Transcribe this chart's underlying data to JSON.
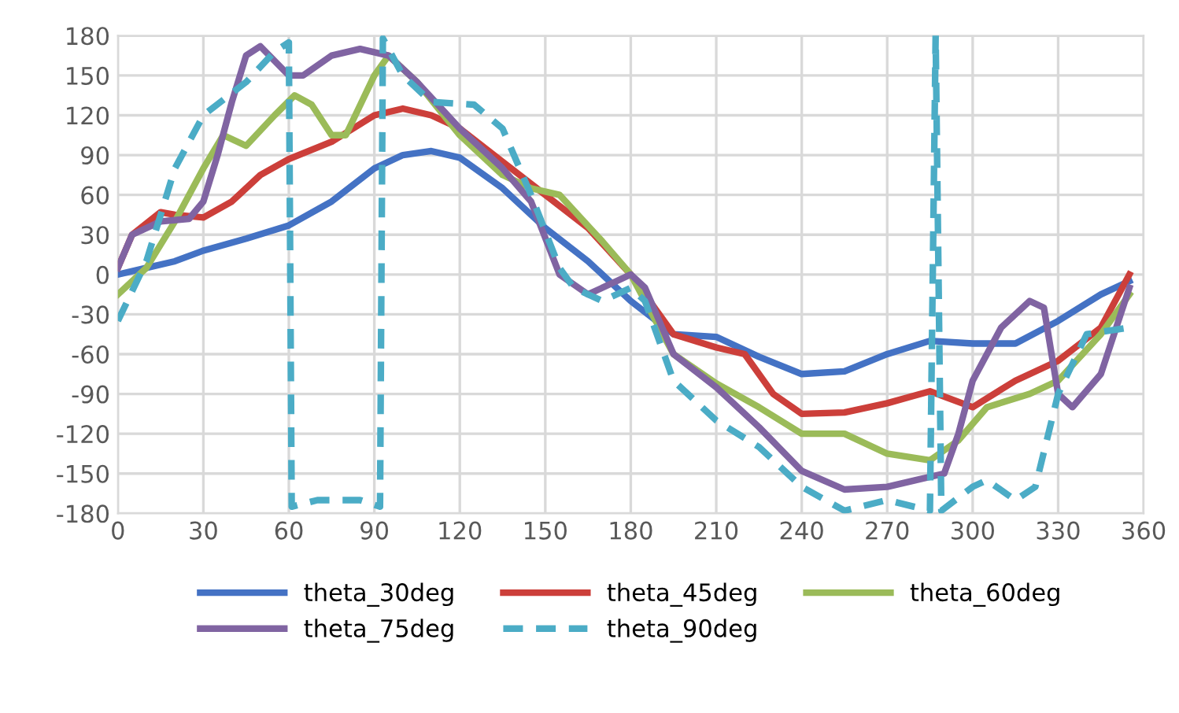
{
  "chart_data": {
    "type": "line",
    "xlim": [
      0,
      360
    ],
    "xticks": [
      0,
      30,
      60,
      90,
      120,
      150,
      180,
      210,
      240,
      270,
      300,
      330,
      360
    ],
    "ylim": [
      -180,
      180
    ],
    "yticks": [
      -180,
      -150,
      -120,
      -90,
      -60,
      -30,
      0,
      30,
      60,
      90,
      120,
      150,
      180
    ],
    "grid": true,
    "legend": "bottom",
    "marker": "none",
    "series": [
      {
        "name": "theta_30deg",
        "color": "#4472c4",
        "line_style": "solid",
        "x": [
          0,
          10,
          20,
          30,
          45,
          60,
          75,
          90,
          100,
          110,
          120,
          135,
          150,
          165,
          180,
          195,
          210,
          225,
          240,
          255,
          270,
          285,
          300,
          315,
          330,
          345,
          355
        ],
        "values": [
          0,
          5,
          10,
          18,
          27,
          37,
          55,
          80,
          90,
          93,
          88,
          65,
          35,
          10,
          -20,
          -45,
          -47,
          -62,
          -75,
          -73,
          -60,
          -50,
          -52,
          -52,
          -35,
          -15,
          -5
        ]
      },
      {
        "name": "theta_45deg",
        "color": "#cc3f3a",
        "line_style": "solid",
        "x": [
          0,
          5,
          15,
          20,
          30,
          40,
          50,
          60,
          75,
          90,
          100,
          110,
          120,
          135,
          150,
          165,
          180,
          195,
          210,
          220,
          230,
          240,
          255,
          270,
          285,
          300,
          315,
          330,
          345,
          355
        ],
        "values": [
          5,
          30,
          47,
          45,
          43,
          55,
          75,
          87,
          100,
          120,
          125,
          120,
          110,
          85,
          60,
          35,
          0,
          -45,
          -55,
          -60,
          -90,
          -105,
          -104,
          -97,
          -88,
          -100,
          -80,
          -65,
          -40,
          0
        ]
      },
      {
        "name": "theta_60deg",
        "color": "#9bbb59",
        "line_style": "solid",
        "x": [
          0,
          10,
          20,
          30,
          37,
          45,
          55,
          62,
          68,
          75,
          80,
          90,
          95,
          105,
          120,
          135,
          145,
          155,
          170,
          180,
          195,
          210,
          225,
          240,
          255,
          270,
          285,
          295,
          305,
          320,
          330,
          345,
          355
        ],
        "values": [
          -15,
          5,
          40,
          80,
          105,
          97,
          120,
          135,
          128,
          105,
          105,
          150,
          165,
          145,
          105,
          75,
          65,
          60,
          25,
          0,
          -60,
          -82,
          -100,
          -120,
          -120,
          -135,
          -140,
          -125,
          -100,
          -90,
          -80,
          -45,
          -15
        ]
      },
      {
        "name": "theta_75deg",
        "color": "#8064a2",
        "line_style": "solid",
        "x": [
          0,
          5,
          15,
          25,
          30,
          35,
          40,
          45,
          50,
          60,
          65,
          75,
          85,
          95,
          105,
          120,
          135,
          145,
          155,
          165,
          175,
          180,
          185,
          195,
          210,
          225,
          240,
          255,
          270,
          280,
          290,
          295,
          300,
          310,
          320,
          325,
          330,
          335,
          345,
          355
        ],
        "values": [
          5,
          30,
          40,
          42,
          55,
          90,
          130,
          165,
          172,
          150,
          150,
          165,
          170,
          165,
          145,
          110,
          80,
          55,
          0,
          -15,
          -5,
          0,
          -10,
          -60,
          -85,
          -115,
          -148,
          -162,
          -160,
          -155,
          -150,
          -120,
          -80,
          -40,
          -20,
          -25,
          -90,
          -100,
          -75,
          -10
        ]
      },
      {
        "name": "theta_90deg",
        "color": "#4bacc6",
        "line_style": "dashed",
        "x": [
          0,
          10,
          20,
          30,
          45,
          55,
          60,
          61,
          70,
          85,
          92,
          93,
          100,
          110,
          125,
          135,
          145,
          155,
          160,
          170,
          180,
          185,
          195,
          210,
          225,
          240,
          255,
          270,
          285,
          287,
          289,
          300,
          305,
          315,
          322,
          330,
          340,
          355
        ],
        "values": [
          -35,
          10,
          80,
          120,
          145,
          168,
          175,
          -175,
          -170,
          -170,
          -175,
          178,
          150,
          130,
          128,
          110,
          60,
          5,
          -10,
          -20,
          -10,
          -20,
          -80,
          -110,
          -130,
          -160,
          -178,
          -170,
          -178,
          180,
          -178,
          -160,
          -155,
          -170,
          -160,
          -90,
          -45,
          -40
        ]
      }
    ]
  }
}
